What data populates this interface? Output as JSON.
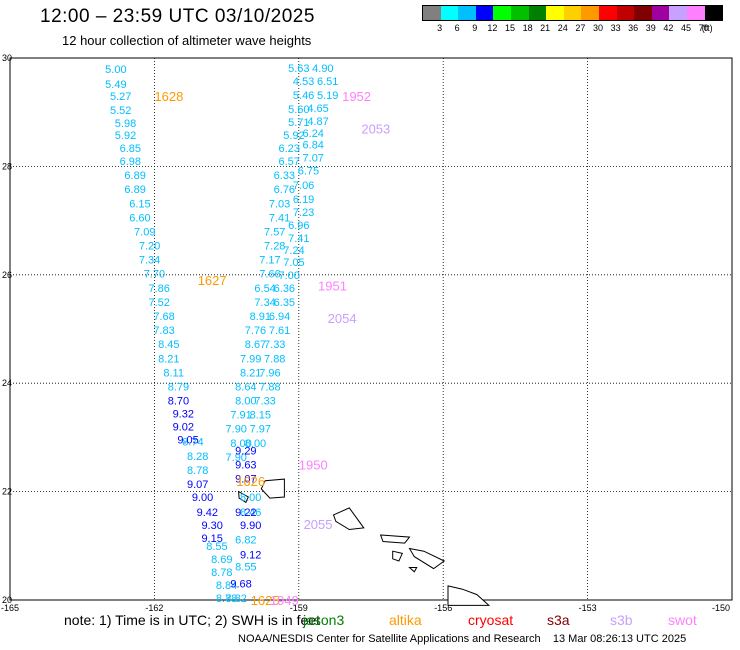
{
  "header": {
    "title": "12:00 – 23:59 UTC 03/10/2025",
    "subtitle": "12 hour collection of altimeter wave heights"
  },
  "legend": {
    "unit": "(ft)",
    "bins": [
      {
        "label": "3",
        "color": "#808080"
      },
      {
        "label": "6",
        "color": "#00ffff"
      },
      {
        "label": "9",
        "color": "#00bfff"
      },
      {
        "label": "12",
        "color": "#0000ff"
      },
      {
        "label": "15",
        "color": "#00ff00"
      },
      {
        "label": "18",
        "color": "#00c000"
      },
      {
        "label": "21",
        "color": "#008000"
      },
      {
        "label": "24",
        "color": "#ffff00"
      },
      {
        "label": "27",
        "color": "#ffd000"
      },
      {
        "label": "30",
        "color": "#ff9900"
      },
      {
        "label": "33",
        "color": "#ff0000"
      },
      {
        "label": "36",
        "color": "#c00000"
      },
      {
        "label": "39",
        "color": "#800000"
      },
      {
        "label": "42",
        "color": "#a000a0"
      },
      {
        "label": "45",
        "color": "#c8a0ff"
      },
      {
        "label": "70",
        "color": "#ff80ff"
      },
      {
        "label": "",
        "color": "#000000"
      }
    ]
  },
  "map": {
    "lon_range": [
      -165,
      -150
    ],
    "lat_range": [
      20,
      30
    ],
    "lon_ticks": [
      "-165",
      "-162",
      "-159",
      "-156",
      "-153",
      "-150"
    ],
    "lat_ticks": [
      "30",
      "28",
      "26",
      "24",
      "22",
      "20"
    ],
    "time_labels": [
      {
        "text": "1628",
        "lon": -161.7,
        "lat": 29.3,
        "color": "#ff9900"
      },
      {
        "text": "1627",
        "lon": -160.8,
        "lat": 25.9,
        "color": "#ff9900"
      },
      {
        "text": "1626",
        "lon": -160.0,
        "lat": 22.2,
        "color": "#ff9900"
      },
      {
        "text": "1625",
        "lon": -159.7,
        "lat": 20.0,
        "color": "#ff9900"
      },
      {
        "text": "1952",
        "lon": -157.8,
        "lat": 29.3,
        "color": "#ff80ff"
      },
      {
        "text": "1951",
        "lon": -158.3,
        "lat": 25.8,
        "color": "#ff80ff"
      },
      {
        "text": "1950",
        "lon": -158.7,
        "lat": 22.5,
        "color": "#ff80ff"
      },
      {
        "text": "1949",
        "lon": -159.3,
        "lat": 20.0,
        "color": "#ff80ff"
      },
      {
        "text": "2053",
        "lon": -157.4,
        "lat": 28.7,
        "color": "#c8a0ff"
      },
      {
        "text": "2054",
        "lon": -158.1,
        "lat": 25.2,
        "color": "#c8a0ff"
      },
      {
        "text": "2055",
        "lon": -158.6,
        "lat": 21.4,
        "color": "#c8a0ff"
      }
    ],
    "tracks": [
      {
        "name": "",
        "color": "#00bfff",
        "points": [
          {
            "text": "5.00",
            "lon": -162.8,
            "lat": 29.8
          },
          {
            "text": "5.49",
            "lon": -162.8,
            "lat": 29.52
          },
          {
            "text": "5.27",
            "lon": -162.7,
            "lat": 29.3
          },
          {
            "text": "5.52",
            "lon": -162.7,
            "lat": 29.04
          },
          {
            "text": "5.98",
            "lon": -162.6,
            "lat": 28.8
          },
          {
            "text": "5.92",
            "lon": -162.6,
            "lat": 28.58
          },
          {
            "text": "6.85",
            "lon": -162.5,
            "lat": 28.34
          },
          {
            "text": "6.98",
            "lon": -162.5,
            "lat": 28.1
          },
          {
            "text": "6.89",
            "lon": -162.4,
            "lat": 27.84
          },
          {
            "text": "6.89",
            "lon": -162.4,
            "lat": 27.58
          },
          {
            "text": "6.15",
            "lon": -162.3,
            "lat": 27.32
          },
          {
            "text": "6.60",
            "lon": -162.3,
            "lat": 27.06
          },
          {
            "text": "7.09",
            "lon": -162.2,
            "lat": 26.8
          },
          {
            "text": "7.20",
            "lon": -162.1,
            "lat": 26.54
          },
          {
            "text": "7.34",
            "lon": -162.1,
            "lat": 26.28
          },
          {
            "text": "7.70",
            "lon": -162.0,
            "lat": 26.02
          },
          {
            "text": "7.86",
            "lon": -161.9,
            "lat": 25.76
          },
          {
            "text": "7.52",
            "lon": -161.9,
            "lat": 25.5
          },
          {
            "text": "7.68",
            "lon": -161.8,
            "lat": 25.24
          },
          {
            "text": "7.83",
            "lon": -161.8,
            "lat": 24.98
          },
          {
            "text": "8.45",
            "lon": -161.7,
            "lat": 24.72
          },
          {
            "text": "8.21",
            "lon": -161.7,
            "lat": 24.46
          },
          {
            "text": "8.11",
            "lon": -161.6,
            "lat": 24.2
          },
          {
            "text": "8.79",
            "lon": -161.5,
            "lat": 23.94
          },
          {
            "text": "8.74",
            "lon": -161.2,
            "lat": 22.92
          },
          {
            "text": "8.28",
            "lon": -161.1,
            "lat": 22.66
          },
          {
            "text": "8.78",
            "lon": -161.1,
            "lat": 22.4
          },
          {
            "text": "8.55",
            "lon": -160.7,
            "lat": 21.0
          },
          {
            "text": "8.69",
            "lon": -160.6,
            "lat": 20.76
          },
          {
            "text": "8.78",
            "lon": -160.6,
            "lat": 20.52
          },
          {
            "text": "8.84",
            "lon": -160.5,
            "lat": 20.28
          },
          {
            "text": "8.78",
            "lon": -160.5,
            "lat": 20.04
          }
        ]
      },
      {
        "name": "",
        "color": "#0000ff",
        "points": [
          {
            "text": "8.70",
            "lon": -161.5,
            "lat": 23.68
          },
          {
            "text": "9.32",
            "lon": -161.4,
            "lat": 23.44
          },
          {
            "text": "9.02",
            "lon": -161.4,
            "lat": 23.2
          },
          {
            "text": "9.05",
            "lon": -161.3,
            "lat": 22.96
          },
          {
            "text": "9.07",
            "lon": -161.1,
            "lat": 22.14
          },
          {
            "text": "9.00",
            "lon": -161.0,
            "lat": 21.9
          },
          {
            "text": "9.42",
            "lon": -160.9,
            "lat": 21.62
          },
          {
            "text": "9.30",
            "lon": -160.8,
            "lat": 21.38
          },
          {
            "text": "9.15",
            "lon": -160.8,
            "lat": 21.14
          },
          {
            "text": "9.12",
            "lon": -160.0,
            "lat": 20.84
          },
          {
            "text": "9.68",
            "lon": -160.2,
            "lat": 20.3
          }
        ]
      },
      {
        "name": "",
        "color": "#00bfff",
        "points": [
          {
            "text": "5.63",
            "lon": -159.0,
            "lat": 29.82
          },
          {
            "text": "4.90",
            "lon": -158.5,
            "lat": 29.82
          },
          {
            "text": "4.53",
            "lon": -158.9,
            "lat": 29.58
          },
          {
            "text": "6.51",
            "lon": -158.4,
            "lat": 29.58
          },
          {
            "text": "5.46",
            "lon": -158.9,
            "lat": 29.32
          },
          {
            "text": "5.19",
            "lon": -158.4,
            "lat": 29.32
          },
          {
            "text": "5.60",
            "lon": -159.0,
            "lat": 29.06
          },
          {
            "text": "4.65",
            "lon": -158.6,
            "lat": 29.08
          },
          {
            "text": "5.71",
            "lon": -159.0,
            "lat": 28.82
          },
          {
            "text": "4.87",
            "lon": -158.6,
            "lat": 28.84
          },
          {
            "text": "5.92",
            "lon": -159.1,
            "lat": 28.58
          },
          {
            "text": "6.24",
            "lon": -158.7,
            "lat": 28.62
          },
          {
            "text": "6.23",
            "lon": -159.2,
            "lat": 28.34
          },
          {
            "text": "6.84",
            "lon": -158.7,
            "lat": 28.4
          },
          {
            "text": "6.57",
            "lon": -159.2,
            "lat": 28.1
          },
          {
            "text": "7.07",
            "lon": -158.7,
            "lat": 28.16
          },
          {
            "text": "6.33",
            "lon": -159.3,
            "lat": 27.84
          },
          {
            "text": "6.75",
            "lon": -158.8,
            "lat": 27.92
          },
          {
            "text": "6.76",
            "lon": -159.3,
            "lat": 27.58
          },
          {
            "text": "7.06",
            "lon": -158.9,
            "lat": 27.66
          },
          {
            "text": "7.03",
            "lon": -159.4,
            "lat": 27.32
          },
          {
            "text": "6.19",
            "lon": -158.9,
            "lat": 27.4
          },
          {
            "text": "7.41",
            "lon": -159.4,
            "lat": 27.06
          },
          {
            "text": "7.23",
            "lon": -158.9,
            "lat": 27.16
          },
          {
            "text": "7.57",
            "lon": -159.5,
            "lat": 26.8
          },
          {
            "text": "6.96",
            "lon": -159.0,
            "lat": 26.92
          },
          {
            "text": "7.28",
            "lon": -159.5,
            "lat": 26.54
          },
          {
            "text": "7.41",
            "lon": -159.0,
            "lat": 26.68
          },
          {
            "text": "7.17",
            "lon": -159.6,
            "lat": 26.28
          },
          {
            "text": "7.24",
            "lon": -159.1,
            "lat": 26.46
          },
          {
            "text": "7.66",
            "lon": -159.6,
            "lat": 26.02
          },
          {
            "text": "7.05",
            "lon": -159.1,
            "lat": 26.24
          },
          {
            "text": "6.54",
            "lon": -159.7,
            "lat": 25.76
          },
          {
            "text": "7.00",
            "lon": -159.2,
            "lat": 26.0
          },
          {
            "text": "7.34",
            "lon": -159.7,
            "lat": 25.5
          },
          {
            "text": "6.36",
            "lon": -159.3,
            "lat": 25.76
          },
          {
            "text": "8.91",
            "lon": -159.8,
            "lat": 25.24
          },
          {
            "text": "6.35",
            "lon": -159.3,
            "lat": 25.5
          },
          {
            "text": "7.76",
            "lon": -159.9,
            "lat": 24.98
          },
          {
            "text": "6.94",
            "lon": -159.4,
            "lat": 25.24
          },
          {
            "text": "8.67",
            "lon": -159.9,
            "lat": 24.72
          },
          {
            "text": "7.61",
            "lon": -159.4,
            "lat": 24.98
          },
          {
            "text": "7.99",
            "lon": -160.0,
            "lat": 24.46
          },
          {
            "text": "7.33",
            "lon": -159.5,
            "lat": 24.72
          },
          {
            "text": "8.21",
            "lon": -160.0,
            "lat": 24.2
          },
          {
            "text": "7.88",
            "lon": -159.5,
            "lat": 24.46
          },
          {
            "text": "8.64",
            "lon": -160.1,
            "lat": 23.94
          },
          {
            "text": "7.96",
            "lon": -159.6,
            "lat": 24.2
          },
          {
            "text": "8.00",
            "lon": -160.1,
            "lat": 23.68
          },
          {
            "text": "7.88",
            "lon": -159.6,
            "lat": 23.94
          },
          {
            "text": "7.91",
            "lon": -160.2,
            "lat": 23.42
          },
          {
            "text": "7.33",
            "lon": -159.7,
            "lat": 23.68
          },
          {
            "text": "7.90",
            "lon": -160.3,
            "lat": 23.16
          },
          {
            "text": "8.15",
            "lon": -159.8,
            "lat": 23.42
          },
          {
            "text": "8.00",
            "lon": -160.2,
            "lat": 22.9
          },
          {
            "text": "7.97",
            "lon": -159.8,
            "lat": 23.16
          },
          {
            "text": "7.90",
            "lon": -160.3,
            "lat": 22.64
          },
          {
            "text": "8.00",
            "lon": -159.9,
            "lat": 22.9
          },
          {
            "text": "8.00",
            "lon": -160.0,
            "lat": 21.9
          },
          {
            "text": "6.82",
            "lon": -160.1,
            "lat": 21.12
          },
          {
            "text": "8.46",
            "lon": -160.0,
            "lat": 21.62
          },
          {
            "text": "8.55",
            "lon": -160.1,
            "lat": 20.62
          },
          {
            "text": "8.82",
            "lon": -160.3,
            "lat": 20.04
          }
        ]
      },
      {
        "name": "",
        "color": "#0000ff",
        "points": [
          {
            "text": "9.29",
            "lon": -160.1,
            "lat": 22.76
          },
          {
            "text": "9.63",
            "lon": -160.1,
            "lat": 22.5
          },
          {
            "text": "9.07",
            "lon": -160.1,
            "lat": 22.24
          },
          {
            "text": "9.90",
            "lon": -160.0,
            "lat": 21.38
          },
          {
            "text": "9.22",
            "lon": -160.1,
            "lat": 21.62
          }
        ]
      }
    ],
    "coastlines": [
      {
        "name": "Kauai",
        "points": [
          [
            -159.7,
            22.2
          ],
          [
            -159.3,
            22.23
          ],
          [
            -159.3,
            21.9
          ],
          [
            -159.6,
            21.88
          ],
          [
            -159.78,
            22.05
          ]
        ]
      },
      {
        "name": "Niihau",
        "points": [
          [
            -160.25,
            22.0
          ],
          [
            -160.05,
            21.9
          ],
          [
            -160.1,
            21.8
          ],
          [
            -160.24,
            21.88
          ]
        ]
      },
      {
        "name": "Oahu",
        "points": [
          [
            -158.28,
            21.57
          ],
          [
            -157.95,
            21.7
          ],
          [
            -157.65,
            21.33
          ],
          [
            -157.95,
            21.3
          ],
          [
            -158.23,
            21.45
          ]
        ]
      },
      {
        "name": "Molokai",
        "points": [
          [
            -157.3,
            21.2
          ],
          [
            -156.7,
            21.16
          ],
          [
            -156.8,
            21.05
          ],
          [
            -157.25,
            21.08
          ]
        ]
      },
      {
        "name": "Maui",
        "points": [
          [
            -156.7,
            20.95
          ],
          [
            -156.4,
            20.9
          ],
          [
            -155.98,
            20.72
          ],
          [
            -156.2,
            20.58
          ],
          [
            -156.6,
            20.8
          ]
        ]
      },
      {
        "name": "Lanai",
        "points": [
          [
            -157.05,
            20.9
          ],
          [
            -156.85,
            20.86
          ],
          [
            -156.92,
            20.72
          ],
          [
            -157.05,
            20.76
          ]
        ]
      },
      {
        "name": "Kahoolawe",
        "points": [
          [
            -156.7,
            20.6
          ],
          [
            -156.55,
            20.6
          ],
          [
            -156.6,
            20.52
          ]
        ]
      },
      {
        "name": "Hawaii",
        "points": [
          [
            -155.9,
            20.26
          ],
          [
            -155.6,
            20.2
          ],
          [
            -155.3,
            20.1
          ],
          [
            -155.05,
            19.9
          ],
          [
            -155.9,
            19.9
          ]
        ]
      }
    ]
  },
  "footer": {
    "note": "note:  1) Time is in UTC;  2) SWH is in feet",
    "satellites": [
      {
        "name": "jason3",
        "color": "#008000"
      },
      {
        "name": "altika",
        "color": "#ff9900"
      },
      {
        "name": "cryosat",
        "color": "#ff0000"
      },
      {
        "name": "s3a",
        "color": "#800000"
      },
      {
        "name": "s3b",
        "color": "#c8a0ff"
      },
      {
        "name": "swot",
        "color": "#ff80ff"
      }
    ],
    "credit": "NOAA/NESDIS Center for Satellite Applications and Research",
    "timestamp": "13 Mar 08:26:13 UTC 2025"
  }
}
